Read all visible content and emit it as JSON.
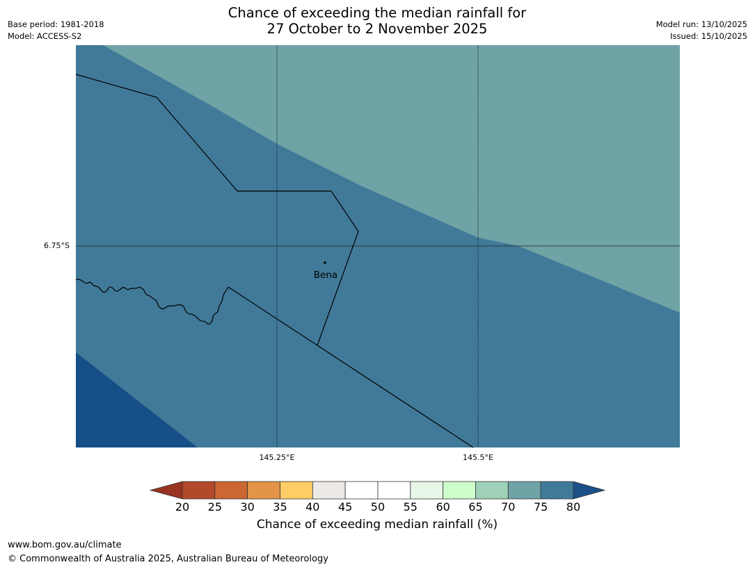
{
  "title": {
    "line1": "Chance of exceeding the median rainfall for",
    "line2": "27 October to 2 November 2025"
  },
  "meta_left": {
    "base_period": "Base period: 1981-2018",
    "model": "Model: ACCESS-S2"
  },
  "meta_right": {
    "model_run": "Model run: 13/10/2025",
    "issued": "Issued: 15/10/2025"
  },
  "map": {
    "lat_label": "6.75°S",
    "lon_labels": [
      "145.25°E",
      "145.5°E"
    ],
    "town": "Bena",
    "zone_colors": {
      "70-75": "#6fa3a6",
      "75-80": "#417a99",
      "80+": "#164e88"
    }
  },
  "colorbar": {
    "ticks": [
      "20",
      "25",
      "30",
      "35",
      "40",
      "45",
      "50",
      "55",
      "60",
      "65",
      "70",
      "75",
      "80"
    ],
    "colors": [
      "#b2492a",
      "#cc6633",
      "#e49447",
      "#ffcc66",
      "#ece9e6",
      "#ffffff",
      "#ffffff",
      "#e8f6e8",
      "#ccffcc",
      "#9ed1b8",
      "#6fa3a6",
      "#417a99"
    ],
    "under_color": "#993322",
    "over_color": "#1a4f87",
    "label": "Chance of exceeding median rainfall (%)"
  },
  "footer": {
    "url": "www.bom.gov.au/climate",
    "copyright": "© Commonwealth of Australia 2025, Australian Bureau of Meteorology"
  }
}
